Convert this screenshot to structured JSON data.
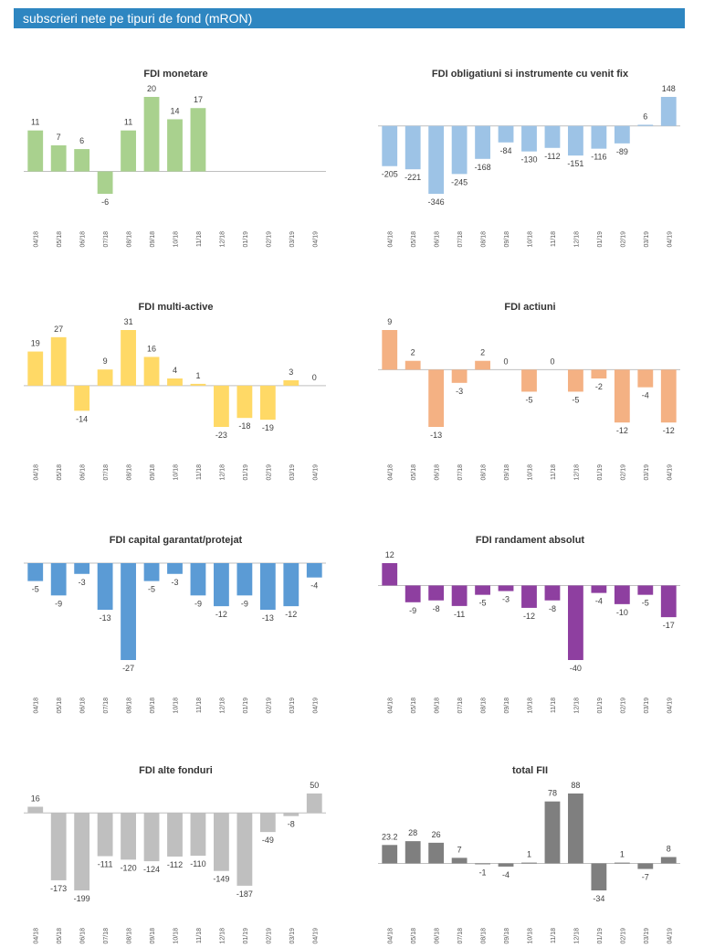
{
  "header": {
    "title": "subscrieri nete pe tipuri de fond (mRON)"
  },
  "chart_data": [
    {
      "type": "bar",
      "title": "FDI monetare",
      "color": "#a9d18e",
      "categories": [
        "04/18",
        "05/18",
        "06/18",
        "07/18",
        "08/18",
        "09/18",
        "10/18",
        "11/18",
        "12/18",
        "01/19",
        "02/19",
        "03/19",
        "04/19"
      ],
      "values": [
        11,
        7,
        6,
        -6,
        11,
        20,
        14,
        17,
        null,
        null,
        null,
        null,
        null
      ],
      "labels": [
        "11",
        "7",
        "6",
        "-6",
        "11",
        "20",
        "14",
        "17",
        "",
        "",
        "",
        "",
        ""
      ]
    },
    {
      "type": "bar",
      "title": "FDI obligatiuni si instrumente cu venit fix",
      "color": "#9dc3e6",
      "categories": [
        "04/18",
        "05/18",
        "06/18",
        "07/18",
        "08/18",
        "09/18",
        "10/18",
        "11/18",
        "12/18",
        "01/19",
        "02/19",
        "03/19",
        "04/19"
      ],
      "values": [
        -205,
        -221,
        -346,
        -245,
        -168,
        -84,
        -130,
        -112,
        -151,
        -116,
        -89,
        6,
        148
      ],
      "labels": [
        "-205",
        "-221",
        "-346",
        "-245",
        "-168",
        "-84",
        "-130",
        "-112",
        "-151",
        "-116",
        "-89",
        "6",
        "148"
      ]
    },
    {
      "type": "bar",
      "title": "FDI multi-active",
      "color": "#ffd966",
      "categories": [
        "04/18",
        "05/18",
        "06/18",
        "07/18",
        "08/18",
        "09/18",
        "10/18",
        "11/18",
        "12/18",
        "01/19",
        "02/19",
        "03/19",
        "04/19"
      ],
      "values": [
        19,
        27,
        -14,
        9,
        31,
        16,
        4,
        1,
        -23,
        -18,
        -19,
        3,
        0
      ],
      "labels": [
        "19",
        "27",
        "-14",
        "9",
        "31",
        "16",
        "4",
        "1",
        "-23",
        "-18",
        "-19",
        "3",
        "0"
      ]
    },
    {
      "type": "bar",
      "title": "FDI actiuni",
      "color": "#f4b183",
      "categories": [
        "04/18",
        "05/18",
        "06/18",
        "07/18",
        "08/18",
        "09/18",
        "10/18",
        "11/18",
        "12/18",
        "01/19",
        "02/19",
        "03/19",
        "04/19"
      ],
      "values": [
        9,
        2,
        -13,
        -3,
        2,
        0,
        -5,
        0,
        -5,
        -2,
        -12,
        -4,
        -12
      ],
      "labels": [
        "9",
        "2",
        "-13",
        "-3",
        "2",
        "0",
        "-5",
        "0",
        "-5",
        "-2",
        "-12",
        "-4",
        "-12"
      ]
    },
    {
      "type": "bar",
      "title": "FDI capital garantat/protejat",
      "color": "#5b9bd5",
      "categories": [
        "04/18",
        "05/18",
        "06/18",
        "07/18",
        "08/18",
        "09/18",
        "10/18",
        "11/18",
        "12/18",
        "01/19",
        "02/19",
        "03/19",
        "04/19"
      ],
      "values": [
        -5,
        -9,
        -3,
        -13,
        -27,
        -5,
        -3,
        -9,
        -12,
        -9,
        -13,
        -12,
        -4
      ],
      "labels": [
        "-5",
        "-9",
        "-3",
        "-13",
        "-27",
        "-5",
        "-3",
        "-9",
        "-12",
        "-9",
        "-13",
        "-12",
        "-4"
      ]
    },
    {
      "type": "bar",
      "title": "FDI randament absolut",
      "color": "#8e3fa0",
      "categories": [
        "04/18",
        "05/18",
        "06/18",
        "07/18",
        "08/18",
        "09/18",
        "10/18",
        "11/18",
        "12/18",
        "01/19",
        "02/19",
        "03/19",
        "04/19"
      ],
      "values": [
        12,
        -9,
        -8,
        -11,
        -5,
        -3,
        -12,
        -8,
        -40,
        -4,
        -10,
        -5,
        -17
      ],
      "labels": [
        "12",
        "-9",
        "-8",
        "-11",
        "-5",
        "-3",
        "-12",
        "-8",
        "-40",
        "-4",
        "-10",
        "-5",
        "-17"
      ]
    },
    {
      "type": "bar",
      "title": "FDI alte fonduri",
      "color": "#bfbfbf",
      "categories": [
        "04/18",
        "05/18",
        "06/18",
        "07/18",
        "08/18",
        "09/18",
        "10/18",
        "11/18",
        "12/18",
        "01/19",
        "02/19",
        "03/19",
        "04/19"
      ],
      "values": [
        16,
        -173,
        -199,
        -111,
        -120,
        -124,
        -112,
        -110,
        -149,
        -187,
        -49,
        -8,
        50
      ],
      "labels": [
        "16",
        "-173",
        "-199",
        "-111",
        "-120",
        "-124",
        "-112",
        "-110",
        "-149",
        "-187",
        "-49",
        "-8",
        "50"
      ]
    },
    {
      "type": "bar",
      "title": "total FII",
      "color": "#7f7f7f",
      "categories": [
        "04/18",
        "05/18",
        "06/18",
        "07/18",
        "08/18",
        "09/18",
        "10/18",
        "11/18",
        "12/18",
        "01/19",
        "02/19",
        "03/19",
        "04/19"
      ],
      "values": [
        23.2,
        28,
        26,
        7,
        -1,
        -4,
        1,
        78,
        88,
        -34,
        1,
        -7,
        8
      ],
      "labels": [
        "23.2",
        "28",
        "26",
        "7",
        "-1",
        "-4",
        "1",
        "78",
        "88",
        "-34",
        "1",
        "-7",
        "8"
      ]
    }
  ]
}
